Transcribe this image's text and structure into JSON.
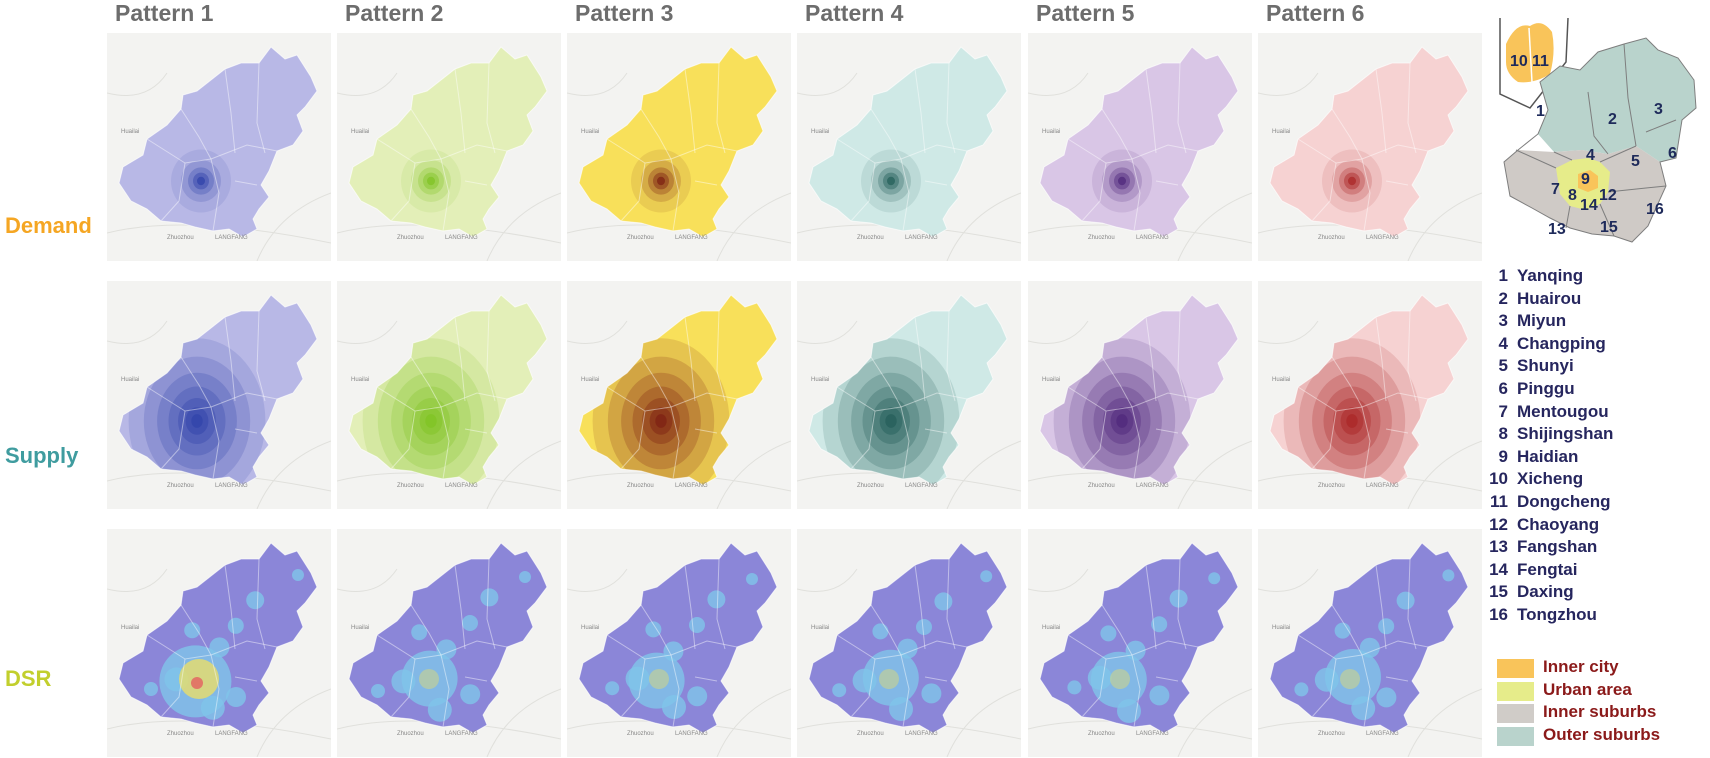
{
  "columns": [
    "Pattern 1",
    "Pattern 2",
    "Pattern 3",
    "Pattern 4",
    "Pattern 5",
    "Pattern 6"
  ],
  "rows": [
    {
      "label": "Demand",
      "color": "#f5a623"
    },
    {
      "label": "Supply",
      "color": "#3f9c9f"
    },
    {
      "label": "DSR",
      "color": "#c2cf2d"
    }
  ],
  "pattern_colors": [
    {
      "base": "#b8b8e6",
      "dark": "#2b3fa8"
    },
    {
      "base": "#e3efb8",
      "dark": "#7cc21e"
    },
    {
      "base": "#f8e05a",
      "dark": "#7a1a10"
    },
    {
      "base": "#cfe9e6",
      "dark": "#1f5a55"
    },
    {
      "base": "#d9c6e6",
      "dark": "#4a2278"
    },
    {
      "base": "#f6d2d2",
      "dark": "#a82020"
    }
  ],
  "dsr_colors": {
    "base": "#8b86d8",
    "mid": "#7fc4ea",
    "hot": "#f0e060",
    "peak": "#e46060"
  },
  "map_labels": {
    "west": "Huailai",
    "south": "Zhuozhou",
    "southeast": "LANGFANG"
  },
  "districts": [
    {
      "num": "1",
      "name": "Yanqing"
    },
    {
      "num": "2",
      "name": "Huairou"
    },
    {
      "num": "3",
      "name": "Miyun"
    },
    {
      "num": "4",
      "name": "Changping"
    },
    {
      "num": "5",
      "name": "Shunyi"
    },
    {
      "num": "6",
      "name": "Pinggu"
    },
    {
      "num": "7",
      "name": "Mentougou"
    },
    {
      "num": "8",
      "name": "Shijingshan"
    },
    {
      "num": "9",
      "name": "Haidian"
    },
    {
      "num": "10",
      "name": "Xicheng"
    },
    {
      "num": "11",
      "name": "Dongcheng"
    },
    {
      "num": "12",
      "name": "Chaoyang"
    },
    {
      "num": "13",
      "name": "Fangshan"
    },
    {
      "num": "14",
      "name": "Fengtai"
    },
    {
      "num": "15",
      "name": "Daxing"
    },
    {
      "num": "16",
      "name": "Tongzhou"
    }
  ],
  "zones": [
    {
      "label": "Inner city",
      "color": "#f9c45a"
    },
    {
      "label": "Urban area",
      "color": "#e6ec8a"
    },
    {
      "label": "Inner suburbs",
      "color": "#d0ccc8"
    },
    {
      "label": "Outer suburbs",
      "color": "#b9d3cc"
    }
  ],
  "inset_colors": {
    "inner": "#f9c45a",
    "urban": "#e6ec8a",
    "inner_suburbs": "#cfcac6",
    "outer_suburbs": "#b9d3cc"
  }
}
